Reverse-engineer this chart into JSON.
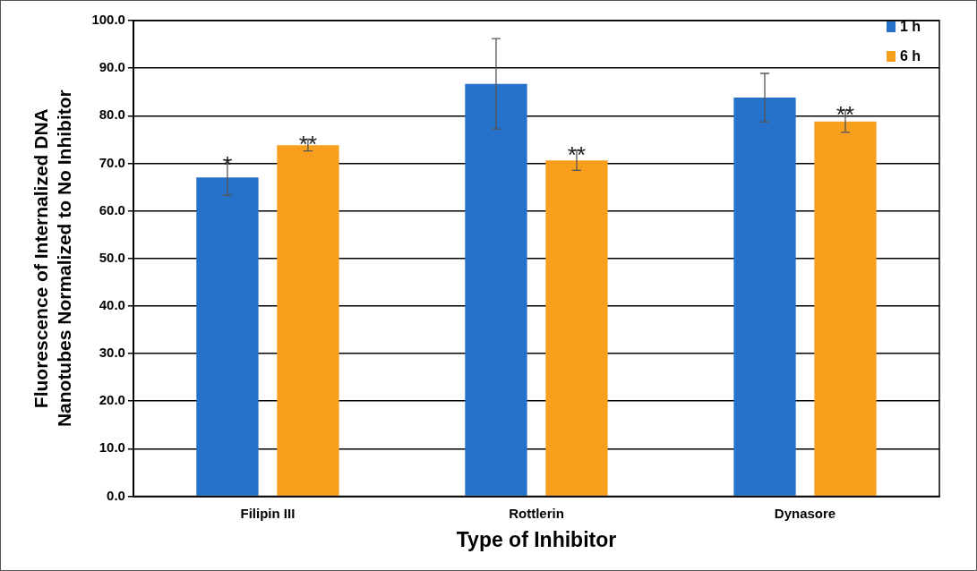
{
  "chart_data": {
    "type": "bar",
    "xlabel": "Type of Inhibitor",
    "ylabel": "Fluorescence of Internalized DNA\nNanotubes Normalized to No Inhibitor",
    "categories": [
      "Filipin III",
      "Rottlerin",
      "Dynasore"
    ],
    "series": [
      {
        "name": "1 h",
        "color": "#2572c8",
        "values": [
          67.0,
          86.7,
          83.8
        ],
        "errors": [
          3.7,
          9.5,
          5.1
        ]
      },
      {
        "name": "6 h",
        "color": "#f89f1e",
        "values": [
          73.8,
          70.6,
          78.8
        ],
        "errors": [
          1.2,
          2.1,
          2.3
        ]
      }
    ],
    "ylim": [
      0,
      100
    ],
    "yticks": [
      {
        "value": 0,
        "label": "0.0"
      },
      {
        "value": 10,
        "label": "10.0"
      },
      {
        "value": 20,
        "label": "20.0"
      },
      {
        "value": 30,
        "label": "30.0"
      },
      {
        "value": 40,
        "label": "40.0"
      },
      {
        "value": 50,
        "label": "50.0"
      },
      {
        "value": 60,
        "label": "60.0"
      },
      {
        "value": 70,
        "label": "70.0"
      },
      {
        "value": 80,
        "label": "80.0"
      },
      {
        "value": 90,
        "label": "90.0"
      },
      {
        "value": 100,
        "label": "100.0"
      }
    ],
    "annotations": [
      "*",
      "**",
      "**",
      "**"
    ],
    "grid": "y",
    "legend": "top right"
  }
}
